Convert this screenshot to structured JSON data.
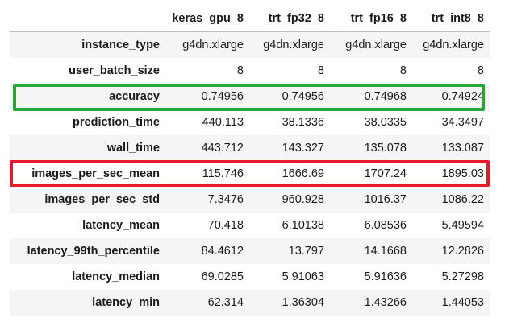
{
  "table": {
    "corner": "",
    "columns": [
      "keras_gpu_8",
      "trt_fp32_8",
      "trt_fp16_8",
      "trt_int8_8"
    ],
    "rows": [
      {
        "label": "instance_type",
        "values": [
          "g4dn.xlarge",
          "g4dn.xlarge",
          "g4dn.xlarge",
          "g4dn.xlarge"
        ]
      },
      {
        "label": "user_batch_size",
        "values": [
          "8",
          "8",
          "8",
          "8"
        ]
      },
      {
        "label": "accuracy",
        "values": [
          "0.74956",
          "0.74956",
          "0.74968",
          "0.74924"
        ]
      },
      {
        "label": "prediction_time",
        "values": [
          "440.113",
          "38.1336",
          "38.0335",
          "34.3497"
        ]
      },
      {
        "label": "wall_time",
        "values": [
          "443.712",
          "143.327",
          "135.078",
          "133.087"
        ]
      },
      {
        "label": "images_per_sec_mean",
        "values": [
          "115.746",
          "1666.69",
          "1707.24",
          "1895.03"
        ]
      },
      {
        "label": "images_per_sec_std",
        "values": [
          "7.3476",
          "960.928",
          "1016.37",
          "1086.22"
        ]
      },
      {
        "label": "latency_mean",
        "values": [
          "70.418",
          "6.10138",
          "6.08536",
          "5.49594"
        ]
      },
      {
        "label": "latency_99th_percentile",
        "values": [
          "84.4612",
          "13.797",
          "14.1668",
          "12.2826"
        ]
      },
      {
        "label": "latency_median",
        "values": [
          "69.0285",
          "5.91063",
          "5.91636",
          "5.27298"
        ]
      },
      {
        "label": "latency_min",
        "values": [
          "62.314",
          "1.36304",
          "1.43266",
          "1.44053"
        ]
      }
    ]
  },
  "highlights": {
    "accuracy_box_color": "#2ba43a",
    "throughput_box_color": "#e8192c"
  }
}
